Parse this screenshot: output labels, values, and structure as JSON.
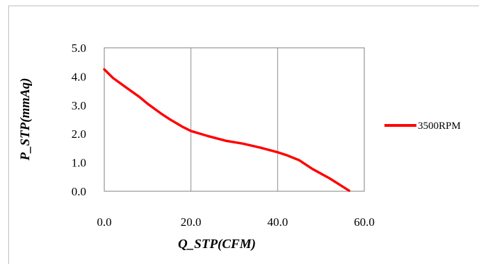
{
  "chart_data": {
    "type": "line",
    "title": "",
    "xlabel": "Q_STP(CFM)",
    "ylabel": "P_STP(mmAq)",
    "xlim": [
      0,
      60
    ],
    "ylim": [
      0,
      5
    ],
    "x_ticks": [
      "0.0",
      "20.0",
      "40.0",
      "60.0"
    ],
    "y_ticks": [
      "0.0",
      "1.0",
      "2.0",
      "3.0",
      "4.0",
      "5.0"
    ],
    "grid": true,
    "legend_position": "right",
    "series": [
      {
        "name": "3500RPM",
        "color": "#ff0000",
        "x": [
          0,
          2,
          5,
          8,
          10,
          13,
          15,
          18,
          20,
          24,
          28,
          32,
          36,
          40,
          42,
          45,
          48,
          52,
          56.5
        ],
        "y": [
          4.25,
          3.95,
          3.62,
          3.3,
          3.05,
          2.72,
          2.52,
          2.25,
          2.1,
          1.92,
          1.76,
          1.66,
          1.52,
          1.36,
          1.26,
          1.08,
          0.78,
          0.45,
          0.02
        ]
      }
    ]
  }
}
